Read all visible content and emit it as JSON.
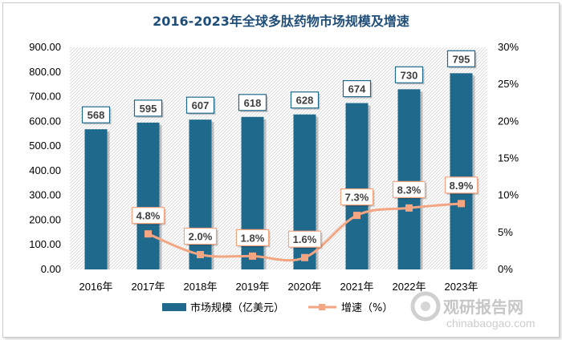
{
  "chart_data": {
    "type": "bar",
    "title": "2016-2023年全球多肽药物市场规模及增速",
    "categories": [
      "2016年",
      "2017年",
      "2018年",
      "2019年",
      "2020年",
      "2021年",
      "2022年",
      "2023年"
    ],
    "series": [
      {
        "name": "市场规模（亿美元）",
        "type": "bar",
        "axis": "left",
        "values": [
          568,
          595,
          607,
          618,
          628,
          674,
          730,
          795
        ],
        "labels": [
          "568",
          "595",
          "607",
          "618",
          "628",
          "674",
          "730",
          "795"
        ],
        "color": "#1f6a8c"
      },
      {
        "name": "增速（%）",
        "type": "line",
        "axis": "right",
        "values": [
          null,
          4.8,
          2.0,
          1.8,
          1.6,
          7.3,
          8.3,
          8.9
        ],
        "labels": [
          "",
          "4.8%",
          "2.0%",
          "1.8%",
          "1.6%",
          "7.3%",
          "8.3%",
          "8.9%"
        ],
        "color": "#f4a582"
      }
    ],
    "y_left": {
      "min": 0,
      "max": 900,
      "ticks": [
        "0.00",
        "100.00",
        "200.00",
        "300.00",
        "400.00",
        "500.00",
        "600.00",
        "700.00",
        "800.00",
        "900.00"
      ]
    },
    "y_right": {
      "min": 0,
      "max": 30,
      "ticks": [
        "0%",
        "5%",
        "10%",
        "15%",
        "20%",
        "25%",
        "30%"
      ]
    },
    "legend_position": "bottom",
    "grid": false
  },
  "watermark": {
    "name": "观研报告网",
    "url": "chinabaogao.com"
  }
}
